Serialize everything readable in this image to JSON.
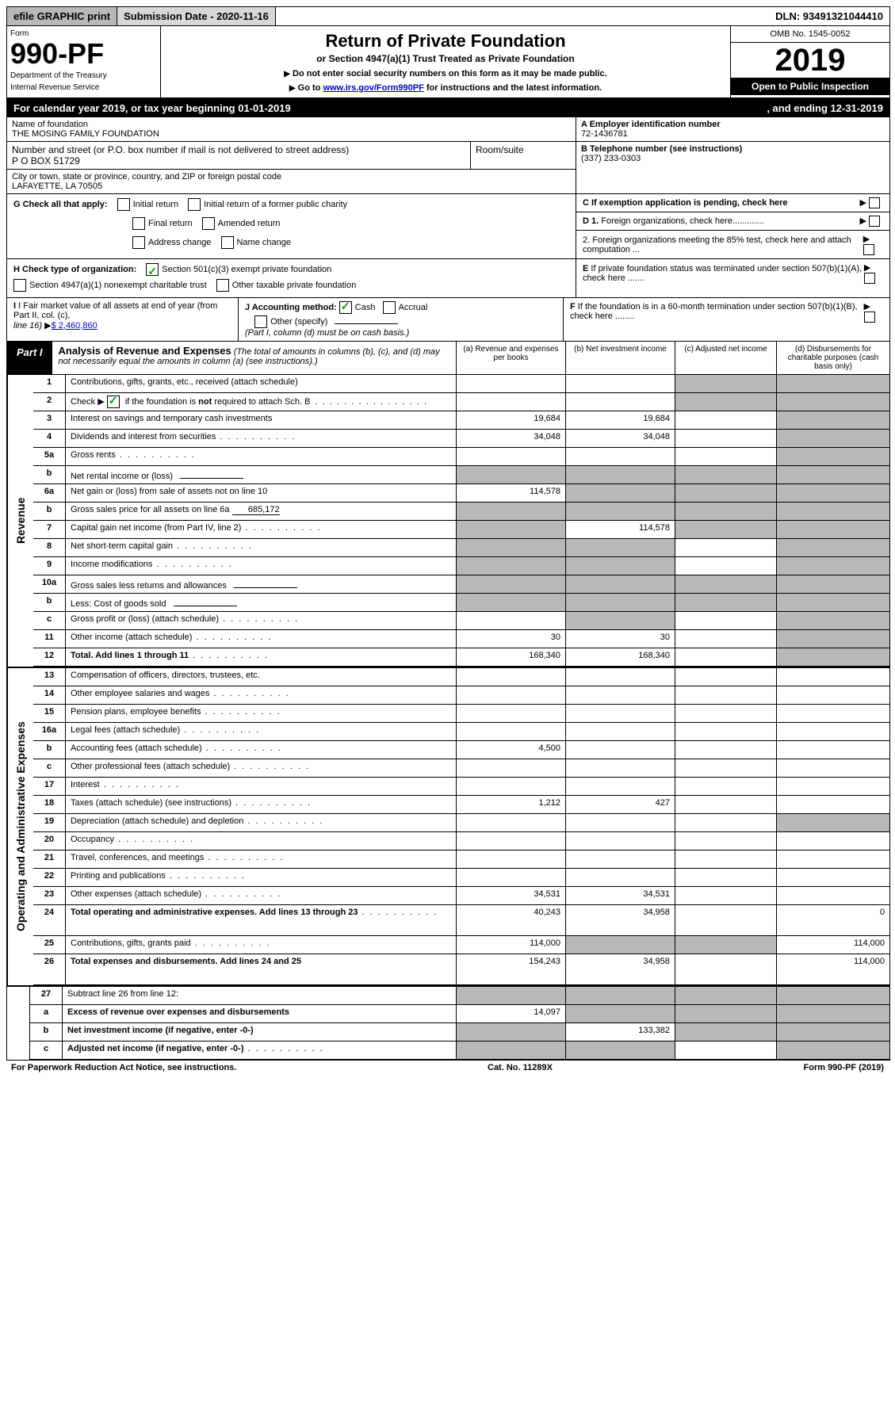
{
  "topbar": {
    "efile": "efile GRAPHIC print",
    "submission": "Submission Date - 2020-11-16",
    "dln": "DLN: 93491321044410"
  },
  "header": {
    "form": "Form",
    "form_no": "990-PF",
    "dept1": "Department of the Treasury",
    "dept2": "Internal Revenue Service",
    "title": "Return of Private Foundation",
    "subtitle": "or Section 4947(a)(1) Trust Treated as Private Foundation",
    "inst1": "Do not enter social security numbers on this form as it may be made public.",
    "inst2_pre": "Go to ",
    "inst2_link": "www.irs.gov/Form990PF",
    "inst2_post": " for instructions and the latest information.",
    "omb": "OMB No. 1545-0052",
    "year": "2019",
    "open": "Open to Public Inspection"
  },
  "calendar": {
    "left": "For calendar year 2019, or tax year beginning 01-01-2019",
    "right": ", and ending 12-31-2019"
  },
  "entity": {
    "name_label": "Name of foundation",
    "name": "THE MOSING FAMILY FOUNDATION",
    "addr_label": "Number and street (or P.O. box number if mail is not delivered to street address)",
    "room_label": "Room/suite",
    "addr": "P O BOX 51729",
    "city_label": "City or town, state or province, country, and ZIP or foreign postal code",
    "city": "LAFAYETTE, LA  70505",
    "ein_label": "A Employer identification number",
    "ein": "72-1436781",
    "tel_label": "B Telephone number (see instructions)",
    "tel": "(337) 233-0303",
    "c_label": "C If exemption application is pending, check here",
    "d1": "D 1. Foreign organizations, check here.............",
    "d2": "2. Foreign organizations meeting the 85% test, check here and attach computation ...",
    "e_label": "E  If private foundation status was terminated under section 507(b)(1)(A), check here .......",
    "f_label": "F  If the foundation is in a 60-month termination under section 507(b)(1)(B), check here ........"
  },
  "checks": {
    "g_label": "G Check all that apply:",
    "initial": "Initial return",
    "initial_former": "Initial return of a former public charity",
    "final": "Final return",
    "amended": "Amended return",
    "addr_change": "Address change",
    "name_change": "Name change",
    "h_label": "H Check type of organization:",
    "h1": "Section 501(c)(3) exempt private foundation",
    "h2": "Section 4947(a)(1) nonexempt charitable trust",
    "h3": "Other taxable private foundation",
    "i_label": "I Fair market value of all assets at end of year (from Part II, col. (c),",
    "i_line": "line 16)",
    "i_val": "$  2,460,860",
    "j_label": "J Accounting method:",
    "j_cash": "Cash",
    "j_accrual": "Accrual",
    "j_other": "Other (specify)",
    "j_note": "(Part I, column (d) must be on cash basis.)"
  },
  "part1": {
    "label": "Part I",
    "title": "Analysis of Revenue and Expenses",
    "note": "(The total of amounts in columns (b), (c), and (d) may not necessarily equal the amounts in column (a) (see instructions).)",
    "col_a": "(a)    Revenue and expenses per books",
    "col_b": "(b)   Net investment income",
    "col_c": "(c)   Adjusted net income",
    "col_d": "(d)   Disbursements for charitable purposes (cash basis only)"
  },
  "vlabels": {
    "rev": "Revenue",
    "exp": "Operating and Administrative Expenses"
  },
  "rows": [
    {
      "no": "1",
      "desc": "Contributions, gifts, grants, etc., received (attach schedule)",
      "a": "",
      "b": "",
      "c": "s",
      "d": "s"
    },
    {
      "no": "2",
      "desc": "Check ▶     if the foundation is not required to attach Sch. B",
      "checked": true,
      "dots": false,
      "a": "",
      "b": "",
      "c": "s",
      "d": "s",
      "noborder": true
    },
    {
      "no": "3",
      "desc": "Interest on savings and temporary cash investments",
      "a": "19,684",
      "b": "19,684",
      "c": "",
      "d": "s"
    },
    {
      "no": "4",
      "desc": "Dividends and interest from securities",
      "a": "34,048",
      "b": "34,048",
      "c": "",
      "d": "s",
      "dots": true
    },
    {
      "no": "5a",
      "desc": "Gross rents",
      "a": "",
      "b": "",
      "c": "",
      "d": "s",
      "dots": true
    },
    {
      "no": "b",
      "desc": "Net rental income or (loss)",
      "blank": true,
      "a": "s",
      "b": "s",
      "c": "s",
      "d": "s"
    },
    {
      "no": "6a",
      "desc": "Net gain or (loss) from sale of assets not on line 10",
      "a": "114,578",
      "b": "s",
      "c": "s",
      "d": "s"
    },
    {
      "no": "b",
      "desc": "Gross sales price for all assets on line 6a",
      "inline": "685,172",
      "a": "s",
      "b": "s",
      "c": "s",
      "d": "s"
    },
    {
      "no": "7",
      "desc": "Capital gain net income (from Part IV, line 2)",
      "a": "s",
      "b": "114,578",
      "c": "s",
      "d": "s",
      "dots": true
    },
    {
      "no": "8",
      "desc": "Net short-term capital gain",
      "a": "s",
      "b": "s",
      "c": "",
      "d": "s",
      "dots": true
    },
    {
      "no": "9",
      "desc": "Income modifications",
      "a": "s",
      "b": "s",
      "c": "",
      "d": "s",
      "dots": true
    },
    {
      "no": "10a",
      "desc": "Gross sales less returns and allowances",
      "blank": true,
      "a": "s",
      "b": "s",
      "c": "s",
      "d": "s"
    },
    {
      "no": "b",
      "desc": "Less: Cost of goods sold",
      "blank": true,
      "a": "s",
      "b": "s",
      "c": "s",
      "d": "s",
      "dots": true
    },
    {
      "no": "c",
      "desc": "Gross profit or (loss) (attach schedule)",
      "a": "",
      "b": "s",
      "c": "",
      "d": "s",
      "dots": true
    },
    {
      "no": "11",
      "desc": "Other income (attach schedule)",
      "a": "30",
      "b": "30",
      "c": "",
      "d": "s",
      "dots": true
    },
    {
      "no": "12",
      "desc": "Total. Add lines 1 through 11",
      "bold": true,
      "a": "168,340",
      "b": "168,340",
      "c": "",
      "d": "s",
      "dots": true
    }
  ],
  "exp_rows": [
    {
      "no": "13",
      "desc": "Compensation of officers, directors, trustees, etc.",
      "a": "",
      "b": "",
      "c": "",
      "d": ""
    },
    {
      "no": "14",
      "desc": "Other employee salaries and wages",
      "a": "",
      "b": "",
      "c": "",
      "d": "",
      "dots": true
    },
    {
      "no": "15",
      "desc": "Pension plans, employee benefits",
      "a": "",
      "b": "",
      "c": "",
      "d": "",
      "dots": true
    },
    {
      "no": "16a",
      "desc": "Legal fees (attach schedule)",
      "a": "",
      "b": "",
      "c": "",
      "d": "",
      "dots": true
    },
    {
      "no": "b",
      "desc": "Accounting fees (attach schedule)",
      "a": "4,500",
      "b": "",
      "c": "",
      "d": "",
      "dots": true
    },
    {
      "no": "c",
      "desc": "Other professional fees (attach schedule)",
      "a": "",
      "b": "",
      "c": "",
      "d": "",
      "dots": true
    },
    {
      "no": "17",
      "desc": "Interest",
      "a": "",
      "b": "",
      "c": "",
      "d": "",
      "dots": true
    },
    {
      "no": "18",
      "desc": "Taxes (attach schedule) (see instructions)",
      "a": "1,212",
      "b": "427",
      "c": "",
      "d": "",
      "dots": true
    },
    {
      "no": "19",
      "desc": "Depreciation (attach schedule) and depletion",
      "a": "",
      "b": "",
      "c": "",
      "d": "s",
      "dots": true
    },
    {
      "no": "20",
      "desc": "Occupancy",
      "a": "",
      "b": "",
      "c": "",
      "d": "",
      "dots": true
    },
    {
      "no": "21",
      "desc": "Travel, conferences, and meetings",
      "a": "",
      "b": "",
      "c": "",
      "d": "",
      "dots": true
    },
    {
      "no": "22",
      "desc": "Printing and publications",
      "a": "",
      "b": "",
      "c": "",
      "d": "",
      "dots": true
    },
    {
      "no": "23",
      "desc": "Other expenses (attach schedule)",
      "a": "34,531",
      "b": "34,531",
      "c": "",
      "d": "",
      "dots": true
    },
    {
      "no": "24",
      "desc": "Total operating and administrative expenses. Add lines 13 through 23",
      "bold": true,
      "a": "40,243",
      "b": "34,958",
      "c": "",
      "d": "0",
      "dots": true,
      "tall": true
    },
    {
      "no": "25",
      "desc": "Contributions, gifts, grants paid",
      "a": "114,000",
      "b": "s",
      "c": "s",
      "d": "114,000",
      "dots": true
    },
    {
      "no": "26",
      "desc": "Total expenses and disbursements. Add lines 24 and 25",
      "bold": true,
      "a": "154,243",
      "b": "34,958",
      "c": "",
      "d": "114,000",
      "tall": true
    }
  ],
  "sub_rows": [
    {
      "no": "27",
      "desc": "Subtract line 26 from line 12:",
      "a": "s",
      "b": "s",
      "c": "s",
      "d": "s"
    },
    {
      "no": "a",
      "desc": "Excess of revenue over expenses and disbursements",
      "bold": true,
      "a": "14,097",
      "b": "s",
      "c": "s",
      "d": "s"
    },
    {
      "no": "b",
      "desc": "Net investment income (if negative, enter -0-)",
      "bold": true,
      "a": "s",
      "b": "133,382",
      "c": "s",
      "d": "s"
    },
    {
      "no": "c",
      "desc": "Adjusted net income (if negative, enter -0-)",
      "bold": true,
      "a": "s",
      "b": "s",
      "c": "",
      "d": "s",
      "dots": true
    }
  ],
  "footer": {
    "left": "For Paperwork Reduction Act Notice, see instructions.",
    "mid": "Cat. No. 11289X",
    "right": "Form 990-PF (2019)"
  }
}
